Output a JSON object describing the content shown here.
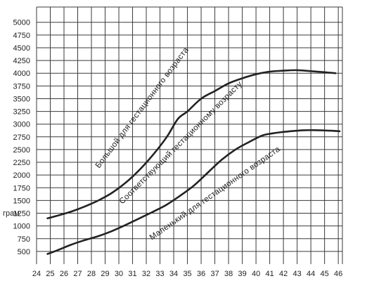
{
  "chart_data": {
    "type": "line",
    "ylabel": "грам",
    "xlabel": "",
    "x_ticks": [
      24,
      25,
      26,
      27,
      28,
      29,
      30,
      31,
      32,
      33,
      34,
      35,
      36,
      37,
      38,
      39,
      40,
      41,
      42,
      43,
      44,
      45,
      46
    ],
    "y_ticks": [
      500,
      750,
      1000,
      1250,
      1500,
      1750,
      2000,
      2250,
      2500,
      2750,
      3000,
      3250,
      3500,
      3750,
      4000,
      4250,
      4500,
      4750,
      5000
    ],
    "xlim": [
      24,
      46.3
    ],
    "ylim": [
      250,
      5300
    ],
    "grid": true,
    "series": [
      {
        "name": "Большой для гестационного возраста",
        "x": [
          24.8,
          25.5,
          26.5,
          27.5,
          28.5,
          29.5,
          30.5,
          31.5,
          32.5,
          33.5,
          34.3,
          35,
          36,
          37,
          38,
          39,
          40,
          41,
          42,
          43,
          44,
          45,
          45.8
        ],
        "y": [
          1150,
          1200,
          1280,
          1380,
          1500,
          1650,
          1850,
          2100,
          2400,
          2750,
          3100,
          3250,
          3500,
          3650,
          3800,
          3900,
          3980,
          4030,
          4050,
          4060,
          4040,
          4020,
          4000
        ]
      },
      {
        "name": "Соответствующий гестационному возрасту",
        "x": [
          24.8,
          25.5,
          26.5,
          27.5,
          28.5,
          29.5,
          30.5,
          31.5,
          32.5,
          33.5,
          34.5,
          35.5,
          36.5,
          37.5,
          38.5,
          39.5,
          40.5,
          41.5,
          42.5,
          43.5,
          44.5,
          45.5,
          46.1
        ],
        "y": [
          450,
          520,
          630,
          720,
          800,
          900,
          1020,
          1150,
          1280,
          1420,
          1600,
          1800,
          2050,
          2300,
          2500,
          2650,
          2780,
          2830,
          2860,
          2880,
          2880,
          2870,
          2860
        ]
      },
      {
        "name": "Маленький для гестационного возраста",
        "x": [],
        "y": []
      }
    ]
  }
}
